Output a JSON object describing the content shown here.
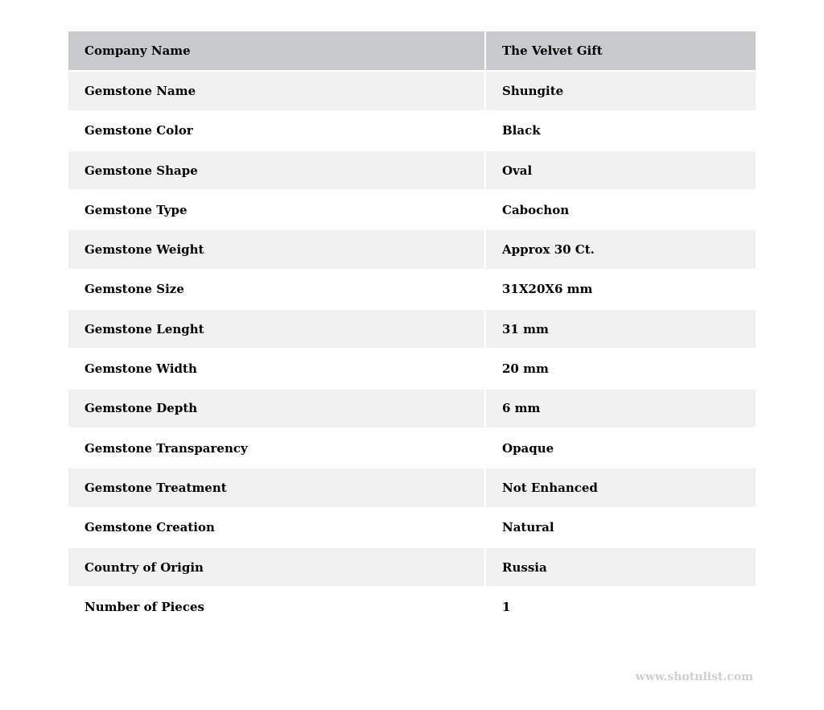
{
  "rows": [
    {
      "label": "Company Name",
      "value": "The Velvet Gift"
    },
    {
      "label": "Gemstone Name",
      "value": "Shungite"
    },
    {
      "label": "Gemstone Color",
      "value": "Black"
    },
    {
      "label": "Gemstone Shape",
      "value": "Oval"
    },
    {
      "label": "Gemstone Type",
      "value": "Cabochon"
    },
    {
      "label": "Gemstone Weight",
      "value": "Approx 30 Ct."
    },
    {
      "label": "Gemstone Size",
      "value": "31X20X6 mm"
    },
    {
      "label": "Gemstone Lenght",
      "value": "31 mm"
    },
    {
      "label": "Gemstone Width",
      "value": "20 mm"
    },
    {
      "label": "Gemstone Depth",
      "value": "6 mm"
    },
    {
      "label": "Gemstone Transparency",
      "value": "Opaque"
    },
    {
      "label": "Gemstone Treatment",
      "value": "Not Enhanced"
    },
    {
      "label": "Gemstone Creation",
      "value": "Natural"
    },
    {
      "label": "Country of Origin",
      "value": "Russia"
    },
    {
      "label": "Number of Pieces",
      "value": "1"
    }
  ],
  "watermark": "www.shotnlist.com",
  "colors": {
    "header_bg": "#c8cbcc",
    "stripe_bg": "#f1f1f1",
    "watermark": "#cfcfcf"
  }
}
